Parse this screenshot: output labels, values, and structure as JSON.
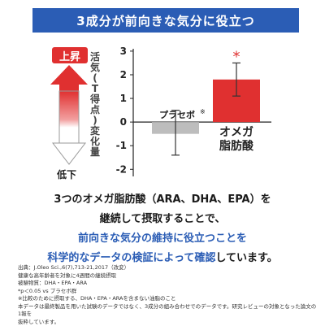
{
  "header": {
    "title": "3成分が前向きな気分に役立つ"
  },
  "side": {
    "up_label": "上昇",
    "ylabel_chars": [
      "活",
      "気",
      "(",
      "T",
      "得",
      "点",
      ")",
      "変",
      "化",
      "量"
    ],
    "down_label": "低下",
    "colors": {
      "up": "#e03030",
      "down": "#ffffff"
    }
  },
  "chart_data": {
    "type": "bar",
    "categories": [
      "プラセボ",
      "オメガ脂肪酸"
    ],
    "category_display": [
      [
        "プラセボ"
      ],
      [
        "オメガ",
        "脂肪酸"
      ]
    ],
    "placebo_mark": "※",
    "values": [
      -0.5,
      1.8
    ],
    "error_low": [
      -1.4,
      1.1
    ],
    "error_high": [
      0.5,
      2.5
    ],
    "significance": [
      "",
      "*"
    ],
    "ylim": [
      -2.3,
      3.1
    ],
    "yticks": [
      3,
      2,
      1,
      0,
      -1,
      -2
    ],
    "ytick_labels": [
      "3",
      "2",
      "1",
      "0",
      "-1",
      "-2"
    ],
    "colors": [
      "#bdbdbd",
      "#e03030"
    ],
    "grid": false
  },
  "body": {
    "line1": "3つのオメガ脂肪酸（ARA、DHA、EPA）を",
    "line2": "継続して摂取することで、",
    "line3": "前向きな気分の維持に役立つことを",
    "line4_blue": "科学的なデータの検証によって確認",
    "line4_end": "しています。",
    "colors": {
      "highlight": "#2b5db5"
    }
  },
  "notes": [
    "出典：J.Oleo Sci.,6(7),713-21,2017（改変）",
    "健康な高年齢者を対象に4週間の継続摂取",
    "被験物質：DHA・EPA・ARA",
    "*p＜0.05 vs プラセボ群",
    "※比較のために摂取する、DHA・EPA・ARAを含まない油脂のこと",
    "本データは最終製品を用いた試験のデータではなく、3成分の組み合わせでのデータです。研究レビューの対象となった論文の1報を",
    "抜粋しています。"
  ]
}
